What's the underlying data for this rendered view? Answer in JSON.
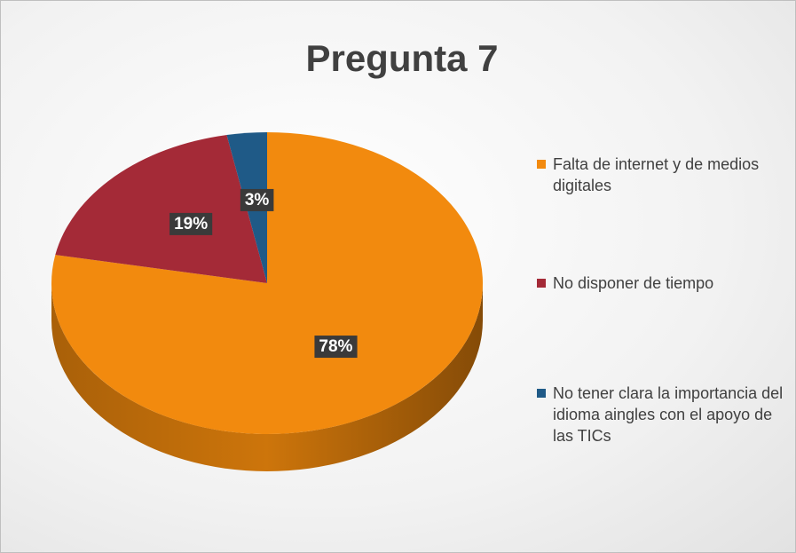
{
  "chart_data": {
    "type": "pie",
    "title": "Pregunta 7",
    "categories": [
      "Falta de internet y de medios digitales",
      "No disponer de tiempo",
      "No tener clara la importancia del idioma aingles con el apoyo de las TICs"
    ],
    "values": [
      78,
      19,
      3
    ],
    "value_labels": [
      "78%",
      "19%",
      "3%"
    ],
    "colors": [
      "#f28a0e",
      "#a42a37",
      "#1f5a87"
    ],
    "legend": "right"
  }
}
